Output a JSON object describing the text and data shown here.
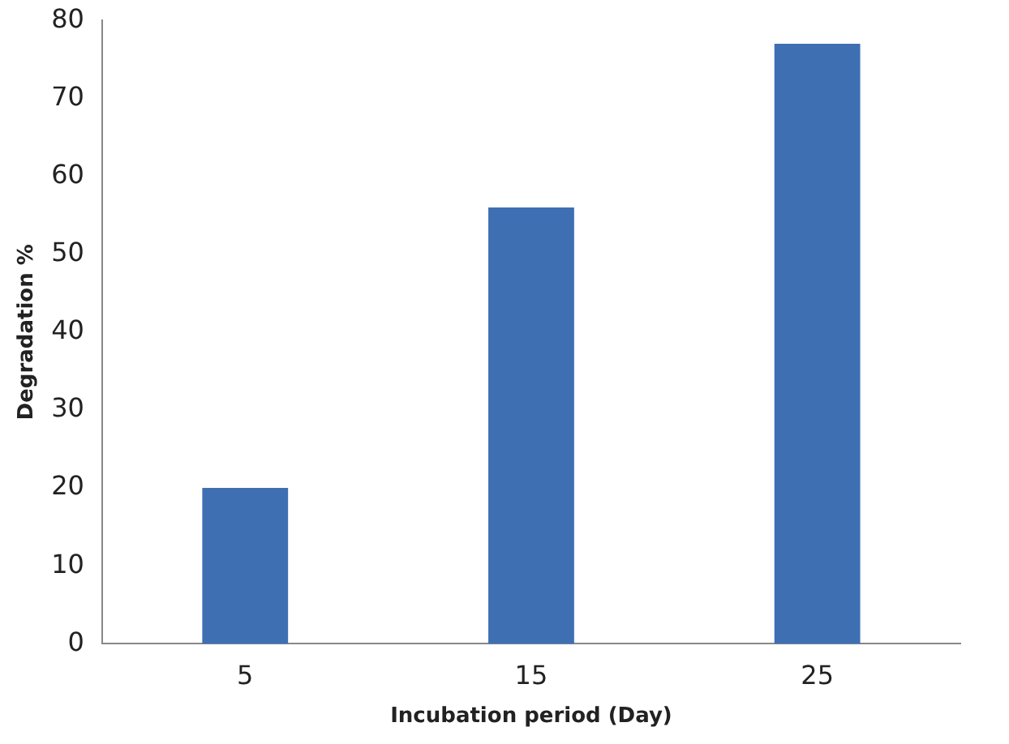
{
  "chart_data": {
    "type": "bar",
    "xlabel": "Incubation period (Day)",
    "ylabel": "Degradation %",
    "categories": [
      "5",
      "15",
      "25"
    ],
    "values": [
      20,
      56,
      77
    ],
    "color": "#3e6fb3",
    "ylim": [
      0,
      80
    ],
    "yticks": [
      0,
      10,
      20,
      30,
      40,
      50,
      60,
      70,
      80
    ],
    "grid": false,
    "legend": false
  }
}
